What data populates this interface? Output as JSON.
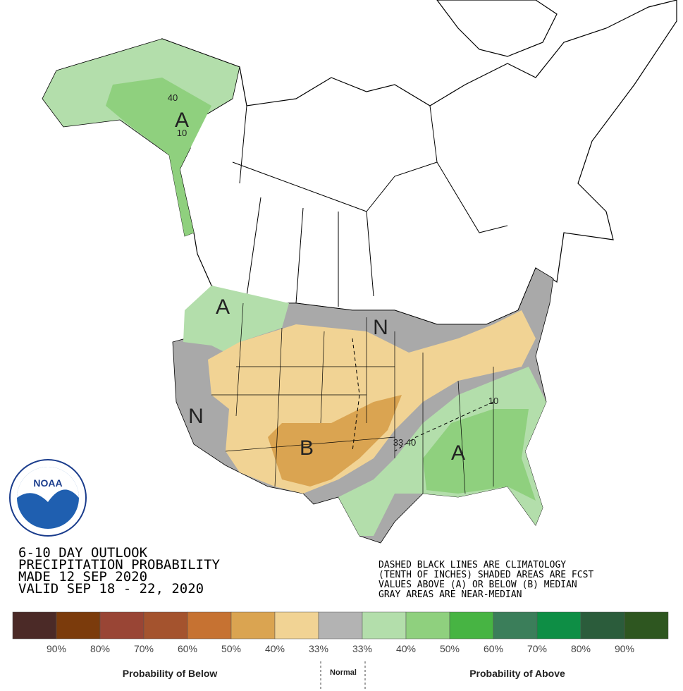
{
  "header": {
    "lines": [
      "6-10 DAY OUTLOOK",
      "PRECIPITATION PROBABILITY",
      "MADE  12 SEP 2020",
      "VALID  SEP 18 - 22, 2020"
    ]
  },
  "note": {
    "lines": [
      "DASHED BLACK LINES ARE CLIMATOLOGY",
      "(TENTH OF INCHES) SHADED AREAS ARE FCST",
      "VALUES ABOVE (A) OR BELOW (B) MEDIAN",
      "GRAY AREAS ARE NEAR-MEDIAN"
    ]
  },
  "logo": "NOAA",
  "map_labels": [
    {
      "text": "A"
    },
    {
      "text": "40"
    },
    {
      "text": "10"
    },
    {
      "text": "A"
    },
    {
      "text": "N"
    },
    {
      "text": "N"
    },
    {
      "text": "B"
    },
    {
      "text": "A"
    },
    {
      "text": "33"
    },
    {
      "text": "40"
    },
    {
      "text": "10"
    }
  ],
  "legend": {
    "colors": [
      "#4b2a27",
      "#7b3b0c",
      "#994535",
      "#a4532e",
      "#c67232",
      "#daa451",
      "#f1d394",
      "#b3b3b3",
      "#b3deab",
      "#8fd07e",
      "#47b443",
      "#3b7e5a",
      "#0e8e45",
      "#2b5c3b",
      "#2e5620"
    ],
    "labels": [
      "90%",
      "80%",
      "70%",
      "60%",
      "50%",
      "40%",
      "33%",
      "33%",
      "40%",
      "50%",
      "60%",
      "70%",
      "80%",
      "90%"
    ],
    "below_title": "Probability of Below",
    "normal_title": "Normal",
    "above_title": "Probability of Above"
  }
}
